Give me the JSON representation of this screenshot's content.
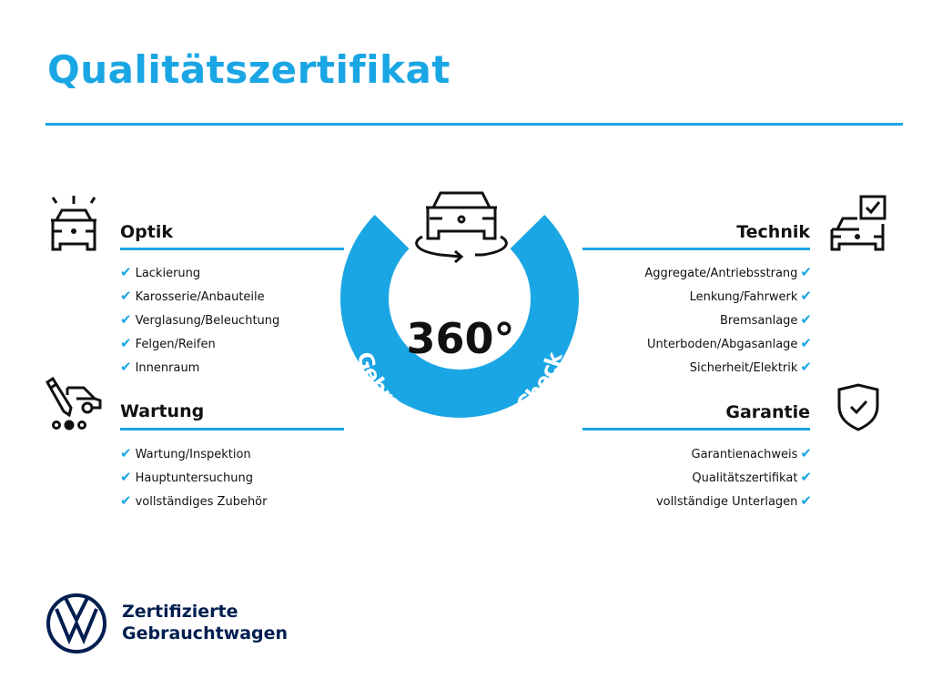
{
  "title": "Qualitätszertifikat",
  "colors": {
    "accent": "#1aa6e4",
    "brand": "#001e50",
    "text": "#111111"
  },
  "center": {
    "label": "360°",
    "ring_text": "Gebrauchtwagen-Check",
    "icon": "car-rotate-icon"
  },
  "sections": {
    "optik": {
      "heading": "Optik",
      "icon": "car-lights-icon",
      "items": [
        "Lackierung",
        "Karosserie/Anbauteile",
        "Verglasung/Beleuchtung",
        "Felgen/Reifen",
        "Innenraum"
      ]
    },
    "wartung": {
      "heading": "Wartung",
      "icon": "car-service-icon",
      "items": [
        "Wartung/Inspektion",
        "Hauptuntersuchung",
        "vollständiges Zubehör"
      ]
    },
    "technik": {
      "heading": "Technik",
      "icon": "car-checkbox-icon",
      "items": [
        "Aggregate/Antriebsstrang",
        "Lenkung/Fahrwerk",
        "Bremsanlage",
        "Unterboden/Abgasanlage",
        "Sicherheit/Elektrik"
      ]
    },
    "garantie": {
      "heading": "Garantie",
      "icon": "shield-check-icon",
      "items": [
        "Garantienachweis",
        "Qualitätszertifikat",
        "vollständige Unterlagen"
      ]
    }
  },
  "check_mark": "✔",
  "footer": {
    "line1": "Zertifizierte",
    "line2": "Gebrauchtwagen",
    "logo": "vw-logo"
  }
}
